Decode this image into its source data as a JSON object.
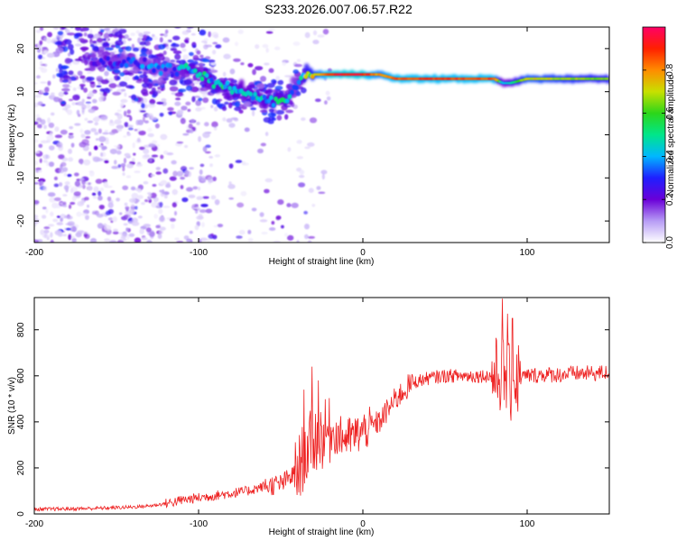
{
  "title": "S233.2026.007.06.57.R22",
  "chart_data": [
    {
      "type": "heatmap",
      "name": "spectrogram",
      "xlabel": "Height of straight line (km)",
      "ylabel": "Frequency (Hz)",
      "xlim": [
        -200,
        150
      ],
      "ylim": [
        -25,
        25
      ],
      "xticks": [
        "-200",
        "-100",
        "0",
        "100"
      ],
      "yticks": [
        "-20",
        "-10",
        "0",
        "10",
        "20"
      ],
      "colorbar": {
        "label": "Normalized spectral amplitude",
        "range": [
          0.0,
          1.0
        ],
        "ticks": [
          "0.0",
          "0.2",
          "0.4",
          "0.6",
          "0.8"
        ],
        "colors": [
          "#ffffff",
          "#b79cf5",
          "#6a00d8",
          "#1f1fff",
          "#00b7ff",
          "#00e68a",
          "#2cd61a",
          "#c8e000",
          "#ff8c00",
          "#ff2000",
          "#ff0066"
        ]
      },
      "ridge": {
        "x": [
          -160,
          -145,
          -130,
          -115,
          -105,
          -95,
          -85,
          -75,
          -65,
          -55,
          -47,
          -40,
          -35,
          -30,
          -20,
          -10,
          0,
          10,
          20,
          40,
          60,
          80,
          85,
          90,
          100,
          120,
          150
        ],
        "freq": [
          17,
          17,
          16,
          15,
          15,
          13,
          11,
          10,
          9,
          8,
          8,
          12,
          14,
          14,
          14,
          14,
          14,
          14,
          13,
          13,
          13,
          13,
          12,
          12,
          13,
          13,
          13
        ],
        "amplitude": [
          0.25,
          0.3,
          0.35,
          0.35,
          0.45,
          0.45,
          0.5,
          0.45,
          0.45,
          0.5,
          0.45,
          0.3,
          0.6,
          0.7,
          0.95,
          0.95,
          0.95,
          0.8,
          0.9,
          0.9,
          0.9,
          0.9,
          0.4,
          0.5,
          0.75,
          0.7,
          0.65
        ]
      }
    },
    {
      "type": "line",
      "name": "snr",
      "xlabel": "Height of straight line (km)",
      "ylabel": "SNR (10 * v/v)",
      "xlim": [
        -200,
        150
      ],
      "ylim": [
        0,
        940
      ],
      "xticks": [
        "-200",
        "-100",
        "0",
        "100"
      ],
      "yticks": [
        "0",
        "200",
        "400",
        "600",
        "800"
      ],
      "color": "#ee2222",
      "series": [
        {
          "name": "SNR",
          "x": [
            -200,
            -180,
            -160,
            -140,
            -130,
            -120,
            -110,
            -100,
            -90,
            -80,
            -70,
            -60,
            -50,
            -40,
            -35,
            -30,
            -25,
            -20,
            -15,
            -10,
            -5,
            0,
            10,
            20,
            30,
            40,
            50,
            60,
            70,
            80,
            85,
            90,
            95,
            100,
            110,
            120,
            130,
            140,
            150
          ],
          "values": [
            20,
            22,
            25,
            30,
            35,
            45,
            60,
            70,
            80,
            90,
            100,
            120,
            130,
            180,
            270,
            320,
            340,
            360,
            340,
            330,
            340,
            360,
            400,
            500,
            570,
            590,
            600,
            600,
            600,
            600,
            610,
            560,
            590,
            600,
            605,
            605,
            610,
            610,
            615
          ]
        }
      ],
      "spikes": [
        {
          "x": -36,
          "value": 540
        },
        {
          "x": -31,
          "value": 640
        },
        {
          "x": -27,
          "value": 580
        },
        {
          "x": 85,
          "value": 935
        },
        {
          "x": 88,
          "value": 870
        },
        {
          "x": 91,
          "value": 850
        }
      ]
    }
  ]
}
